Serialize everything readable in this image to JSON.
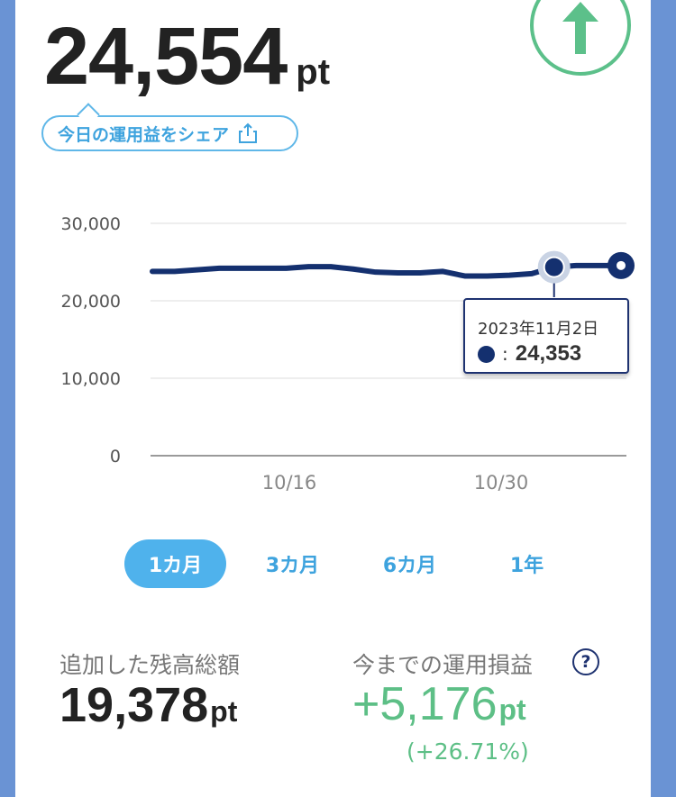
{
  "header": {
    "balance_value": "24,554",
    "balance_unit": "pt",
    "share_label": "今日の運用益をシェア"
  },
  "icons": {
    "up_arrow": "up-arrow-icon",
    "share": "share-icon",
    "help": "help-icon"
  },
  "colors": {
    "line": "#14306f",
    "accent_blue": "#4fb2ec",
    "positive_green": "#5dbf86"
  },
  "chart_data": {
    "type": "line",
    "y_ticks": [
      "30,000",
      "20,000",
      "10,000",
      "0"
    ],
    "x_ticks": [
      "10/16",
      "10/30"
    ],
    "ylim": [
      0,
      30000
    ],
    "grid": true,
    "series": [
      {
        "values": [
          23800,
          23800,
          24000,
          24200,
          24200,
          24200,
          24200,
          24400,
          24400,
          24100,
          23700,
          23600,
          23600,
          23800,
          23200,
          23200,
          23300,
          23500,
          24353,
          24553,
          24553,
          24554
        ]
      }
    ],
    "tooltip": {
      "date": "2023年11月2日",
      "separator": ":",
      "value": "24,353"
    }
  },
  "periods": {
    "items": [
      "1カ月",
      "3カ月",
      "6カ月",
      "1年"
    ],
    "selected": "1カ月"
  },
  "stats": {
    "added_label": "追加した残高総額",
    "added_value": "19,378",
    "added_unit": "pt",
    "gain_label": "今までの運用損益",
    "gain_value": "+5,176",
    "gain_unit": "pt",
    "gain_percent": "(+26.71%)",
    "help_mark": "?"
  }
}
